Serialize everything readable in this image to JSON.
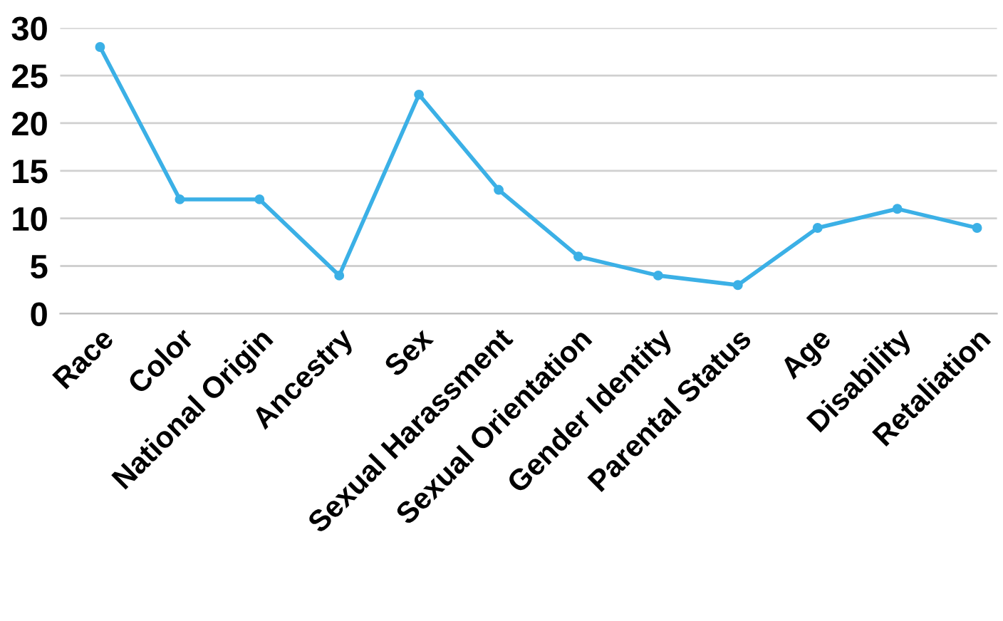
{
  "chart_data": {
    "type": "line",
    "categories": [
      "Race",
      "Color",
      "National Origin",
      "Ancestry",
      "Sex",
      "Sexual Harassment",
      "Sexual Orientation",
      "Gender Identity",
      "Parental Status",
      "Age",
      "Disability",
      "Retaliation"
    ],
    "series": [
      {
        "color": "#3bb0e6",
        "values": [
          28,
          12,
          12,
          4,
          23,
          13,
          6,
          4,
          3,
          9,
          11,
          9
        ]
      }
    ],
    "ylim": [
      0,
      30
    ],
    "yticks": [
      0,
      5,
      10,
      15,
      20,
      25,
      30
    ],
    "grid": "y",
    "marker": "circle",
    "line_style": "solid"
  }
}
